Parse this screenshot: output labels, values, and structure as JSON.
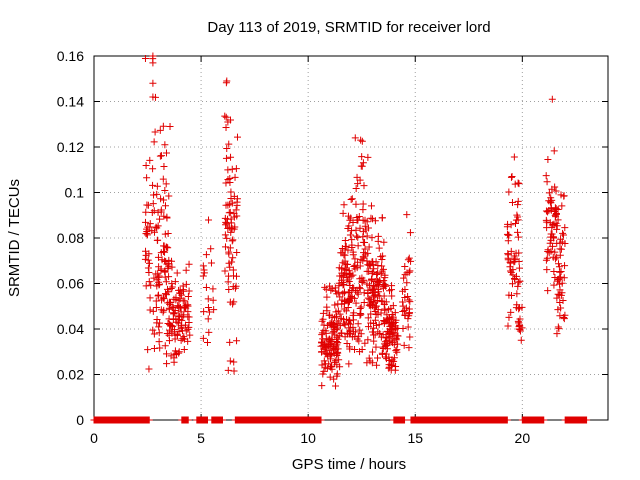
{
  "chart_data": {
    "type": "scatter",
    "title": "Day 113 of 2019, SRMTID for receiver lord",
    "xlabel": "GPS time / hours",
    "ylabel": "SRMTID / TECUs",
    "xlim": [
      0,
      24
    ],
    "ylim": [
      0,
      0.16
    ],
    "grid": true,
    "marker": "+",
    "color": "#e00000",
    "xticks": [
      0,
      5,
      10,
      15,
      20
    ],
    "xtick_labels": [
      "0",
      "5",
      "10",
      "15",
      "20"
    ],
    "yticks": [
      0,
      0.02,
      0.04,
      0.06,
      0.08,
      0.1,
      0.12,
      0.14,
      0.16
    ],
    "ytick_labels": [
      "0",
      "0.02",
      "0.04",
      "0.06",
      "0.08",
      "0.1",
      "0.12",
      "0.14",
      "0.16"
    ],
    "zero_segments": [
      [
        0,
        2.6
      ],
      [
        4.1,
        4.4
      ],
      [
        4.8,
        5.3
      ],
      [
        5.5,
        6.0
      ],
      [
        6.6,
        10.6
      ],
      [
        14.0,
        14.5
      ],
      [
        14.8,
        19.3
      ],
      [
        20.0,
        21.0
      ],
      [
        22.0,
        23.0
      ]
    ],
    "clusters": [
      {
        "x_range": [
          2.4,
          2.9
        ],
        "y_range": [
          0.015,
          0.16
        ],
        "count": 50
      },
      {
        "x_range": [
          2.9,
          3.5
        ],
        "y_range": [
          0.02,
          0.13
        ],
        "count": 90
      },
      {
        "x_range": [
          3.5,
          4.0
        ],
        "y_range": [
          0.025,
          0.07
        ],
        "count": 60
      },
      {
        "x_range": [
          4.0,
          4.5
        ],
        "y_range": [
          0.03,
          0.07
        ],
        "count": 45
      },
      {
        "x_range": [
          5.1,
          5.6
        ],
        "y_range": [
          0.03,
          0.095
        ],
        "count": 20
      },
      {
        "x_range": [
          6.1,
          6.7
        ],
        "y_range": [
          0.02,
          0.15
        ],
        "count": 80
      },
      {
        "x_range": [
          10.6,
          11.4
        ],
        "y_range": [
          0.012,
          0.06
        ],
        "count": 120
      },
      {
        "x_range": [
          11.4,
          12.2
        ],
        "y_range": [
          0.02,
          0.1
        ],
        "count": 130
      },
      {
        "x_range": [
          12.2,
          12.8
        ],
        "y_range": [
          0.02,
          0.125
        ],
        "count": 80
      },
      {
        "x_range": [
          12.8,
          13.6
        ],
        "y_range": [
          0.02,
          0.095
        ],
        "count": 130
      },
      {
        "x_range": [
          13.6,
          14.2
        ],
        "y_range": [
          0.02,
          0.06
        ],
        "count": 90
      },
      {
        "x_range": [
          14.4,
          14.8
        ],
        "y_range": [
          0.027,
          0.091
        ],
        "count": 35
      },
      {
        "x_range": [
          19.3,
          19.9
        ],
        "y_range": [
          0.04,
          0.116
        ],
        "count": 60
      },
      {
        "x_range": [
          19.8,
          20.0
        ],
        "y_range": [
          0.035,
          0.05
        ],
        "count": 15
      },
      {
        "x_range": [
          21.1,
          21.6
        ],
        "y_range": [
          0.055,
          0.12
        ],
        "count": 60
      },
      {
        "x_range": [
          21.6,
          22.0
        ],
        "y_range": [
          0.037,
          0.1
        ],
        "count": 50
      }
    ],
    "outliers": [
      [
        2.75,
        0.16
      ],
      [
        2.75,
        0.157
      ],
      [
        2.75,
        0.148
      ],
      [
        2.75,
        0.142
      ],
      [
        3.55,
        0.129
      ],
      [
        6.2,
        0.149
      ],
      [
        6.25,
        0.131
      ],
      [
        21.4,
        0.141
      ],
      [
        12.2,
        0.124
      ],
      [
        12.45,
        0.123
      ],
      [
        3.1,
        0.116
      ]
    ]
  }
}
